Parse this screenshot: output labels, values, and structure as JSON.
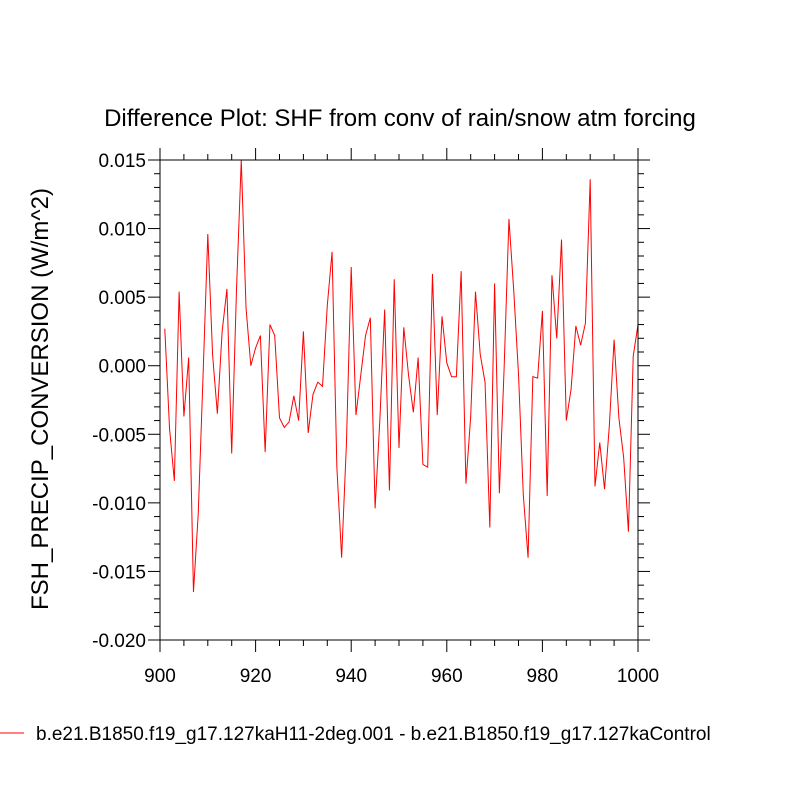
{
  "chart_data": {
    "type": "line",
    "title": "Difference Plot: SHF from conv of rain/snow atm forcing",
    "xlabel": "",
    "ylabel": "FSH_PRECIP_CONVERSION  (W/m^2)",
    "xlim": [
      900,
      1000
    ],
    "ylim": [
      -0.02,
      0.015
    ],
    "x_ticks": [
      900,
      920,
      940,
      960,
      980,
      1000
    ],
    "x_tick_labels": [
      "900",
      "920",
      "940",
      "960",
      "980",
      "1000"
    ],
    "y_ticks": [
      -0.02,
      -0.015,
      -0.01,
      -0.005,
      0.0,
      0.005,
      0.01,
      0.015
    ],
    "y_tick_labels": [
      "-0.020",
      "-0.015",
      "-0.010",
      "-0.005",
      "0.000",
      "0.005",
      "0.010",
      "0.015"
    ],
    "grid": false,
    "legend_position": "bottom",
    "series": [
      {
        "name": "b.e21.B1850.f19_g17.127kaH11-2deg.001 - b.e21.B1850.f19_g17.127kaControl",
        "color": "#ff0000",
        "x": [
          901,
          902,
          903,
          904,
          905,
          906,
          907,
          908,
          909,
          910,
          911,
          912,
          913,
          914,
          915,
          916,
          917,
          918,
          919,
          920,
          921,
          922,
          923,
          924,
          925,
          926,
          927,
          928,
          929,
          930,
          931,
          932,
          933,
          934,
          935,
          936,
          937,
          938,
          939,
          940,
          941,
          942,
          943,
          944,
          945,
          946,
          947,
          948,
          949,
          950,
          951,
          952,
          953,
          954,
          955,
          956,
          957,
          958,
          959,
          960,
          961,
          962,
          963,
          964,
          965,
          966,
          967,
          968,
          969,
          970,
          971,
          972,
          973,
          974,
          975,
          976,
          977,
          978,
          979,
          980,
          981,
          982,
          983,
          984,
          985,
          986,
          987,
          988,
          989,
          990,
          991,
          992,
          993,
          994,
          995,
          996,
          997,
          998,
          999,
          1000
        ],
        "values": [
          0.0027,
          -0.0046,
          -0.0084,
          0.0054,
          -0.0037,
          0.0006,
          -0.0165,
          -0.0108,
          -0.0008,
          0.0096,
          0.0008,
          -0.0035,
          0.0025,
          0.0056,
          -0.0064,
          0.0055,
          0.015,
          0.0042,
          0.0,
          0.0013,
          0.0022,
          -0.0063,
          0.003,
          0.0022,
          -0.0038,
          -0.0045,
          -0.0041,
          -0.0022,
          -0.004,
          0.0025,
          -0.0049,
          -0.0021,
          -0.0012,
          -0.0015,
          0.0044,
          0.0083,
          -0.0074,
          -0.014,
          -0.0057,
          0.0072,
          -0.0036,
          -0.0007,
          0.0022,
          0.0035,
          -0.0104,
          -0.0039,
          0.0041,
          -0.0091,
          0.0063,
          -0.006,
          0.0028,
          -0.0007,
          -0.0034,
          0.0006,
          -0.0072,
          -0.0074,
          0.0067,
          -0.0036,
          0.0036,
          0.0002,
          -0.0008,
          -0.0008,
          0.0069,
          -0.0086,
          -0.0037,
          0.0054,
          0.0008,
          -0.0012,
          -0.0118,
          0.006,
          -0.0093,
          -0.0001,
          0.0107,
          0.0055,
          -0.0006,
          -0.0094,
          -0.014,
          -0.0008,
          -0.0009,
          0.004,
          -0.0095,
          0.0066,
          0.002,
          0.0092,
          -0.004,
          -0.0017,
          0.0029,
          0.0015,
          0.0031,
          0.0136,
          -0.0088,
          -0.0056,
          -0.009,
          -0.0044,
          0.0019,
          -0.0038,
          -0.0067,
          -0.0121,
          0.0007,
          0.003
        ]
      }
    ]
  }
}
